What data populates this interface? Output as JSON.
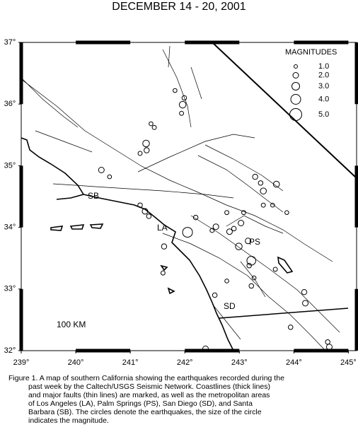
{
  "title": "DECEMBER 14 - 20, 2001",
  "map": {
    "xlim": [
      239,
      245.15
    ],
    "ylim": [
      32,
      37
    ],
    "xticks": [
      {
        "value": 239,
        "label": "239°"
      },
      {
        "value": 240,
        "label": "240°"
      },
      {
        "value": 241,
        "label": "241°"
      },
      {
        "value": 242,
        "label": "242°"
      },
      {
        "value": 243,
        "label": "243°"
      },
      {
        "value": 244,
        "label": "244°"
      },
      {
        "value": 245,
        "label": "245°"
      }
    ],
    "yticks": [
      {
        "value": 32,
        "label": "32°"
      },
      {
        "value": 33,
        "label": "33°"
      },
      {
        "value": 34,
        "label": "34°"
      },
      {
        "value": 35,
        "label": "35°"
      },
      {
        "value": 36,
        "label": "36°"
      },
      {
        "value": 37,
        "label": "37°"
      }
    ],
    "legend": {
      "title": "MAGNITUDES",
      "magnitudes": [
        {
          "value": 1,
          "label": "1.0"
        },
        {
          "value": 2,
          "label": "2.0"
        },
        {
          "value": 3,
          "label": "3.0"
        },
        {
          "value": 4,
          "label": "4.0"
        },
        {
          "value": 5,
          "label": "5.0"
        }
      ]
    },
    "places": [
      "SB",
      "LA",
      "PS",
      "SD"
    ],
    "scale_label": "100 KM",
    "earthquakes": [
      {
        "lon": 241.96,
        "lat": 35.99,
        "mag": 2.5
      },
      {
        "lon": 241.99,
        "lat": 36.1,
        "mag": 1.5
      },
      {
        "lon": 241.82,
        "lat": 36.22,
        "mag": 1.2
      },
      {
        "lon": 241.94,
        "lat": 35.85,
        "mag": 1.3
      },
      {
        "lon": 241.38,
        "lat": 35.68,
        "mag": 1.2
      },
      {
        "lon": 241.44,
        "lat": 35.62,
        "mag": 1.3
      },
      {
        "lon": 241.29,
        "lat": 35.36,
        "mag": 2.5
      },
      {
        "lon": 241.3,
        "lat": 35.25,
        "mag": 1.8
      },
      {
        "lon": 241.18,
        "lat": 35.2,
        "mag": 1.3
      },
      {
        "lon": 240.47,
        "lat": 34.93,
        "mag": 2.0
      },
      {
        "lon": 240.62,
        "lat": 34.82,
        "mag": 1.2
      },
      {
        "lon": 241.18,
        "lat": 34.36,
        "mag": 1.5
      },
      {
        "lon": 241.27,
        "lat": 34.26,
        "mag": 2.0
      },
      {
        "lon": 241.34,
        "lat": 34.18,
        "mag": 1.5
      },
      {
        "lon": 242.05,
        "lat": 33.92,
        "mag": 4.0
      },
      {
        "lon": 241.62,
        "lat": 33.69,
        "mag": 1.8
      },
      {
        "lon": 242.2,
        "lat": 34.16,
        "mag": 1.5
      },
      {
        "lon": 242.57,
        "lat": 34.01,
        "mag": 2.0
      },
      {
        "lon": 242.5,
        "lat": 33.95,
        "mag": 1.3
      },
      {
        "lon": 242.82,
        "lat": 33.93,
        "mag": 2.0
      },
      {
        "lon": 242.9,
        "lat": 33.98,
        "mag": 1.5
      },
      {
        "lon": 242.77,
        "lat": 34.24,
        "mag": 1.3
      },
      {
        "lon": 243.03,
        "lat": 34.07,
        "mag": 2.0
      },
      {
        "lon": 243.16,
        "lat": 33.78,
        "mag": 2.0
      },
      {
        "lon": 242.99,
        "lat": 33.69,
        "mag": 2.5
      },
      {
        "lon": 243.22,
        "lat": 33.46,
        "mag": 3.5
      },
      {
        "lon": 243.18,
        "lat": 33.38,
        "mag": 1.5
      },
      {
        "lon": 243.29,
        "lat": 34.82,
        "mag": 1.8
      },
      {
        "lon": 243.39,
        "lat": 34.72,
        "mag": 1.5
      },
      {
        "lon": 243.44,
        "lat": 34.59,
        "mag": 2.2
      },
      {
        "lon": 243.68,
        "lat": 34.7,
        "mag": 2.2
      },
      {
        "lon": 243.44,
        "lat": 34.36,
        "mag": 1.3
      },
      {
        "lon": 243.61,
        "lat": 34.36,
        "mag": 1.2
      },
      {
        "lon": 243.87,
        "lat": 34.24,
        "mag": 1.2
      },
      {
        "lon": 243.66,
        "lat": 33.32,
        "mag": 1.3
      },
      {
        "lon": 244.19,
        "lat": 32.95,
        "mag": 1.8
      },
      {
        "lon": 244.21,
        "lat": 32.77,
        "mag": 2.0
      },
      {
        "lon": 243.94,
        "lat": 32.38,
        "mag": 1.5
      },
      {
        "lon": 244.62,
        "lat": 32.14,
        "mag": 1.5
      },
      {
        "lon": 244.65,
        "lat": 32.06,
        "mag": 2.0
      },
      {
        "lon": 242.38,
        "lat": 32.03,
        "mag": 2.0
      },
      {
        "lon": 243.22,
        "lat": 33.05,
        "mag": 1.5
      },
      {
        "lon": 243.27,
        "lat": 33.18,
        "mag": 1.2
      },
      {
        "lon": 242.55,
        "lat": 32.9,
        "mag": 1.5
      },
      {
        "lon": 241.6,
        "lat": 33.26,
        "mag": 1.3
      },
      {
        "lon": 242.77,
        "lat": 33.13,
        "mag": 1.2
      },
      {
        "lon": 243.08,
        "lat": 34.24,
        "mag": 1.3
      }
    ]
  },
  "caption_lines": [
    "Figure 1. A map of southern California showing the earthquakes recorded during the",
    "past week by the Caltech/USGS Seismic Network.  Coastlines (thick lines)",
    "and major faults (thin lines) are marked, as well as the metropolitan areas",
    "of Los Angeles (LA), Palm Springs (PS), San Diego (SD), and Santa",
    "Barbara (SB).  The circles denote the earthquakes, the size of the circle",
    "indicates the magnitude."
  ]
}
